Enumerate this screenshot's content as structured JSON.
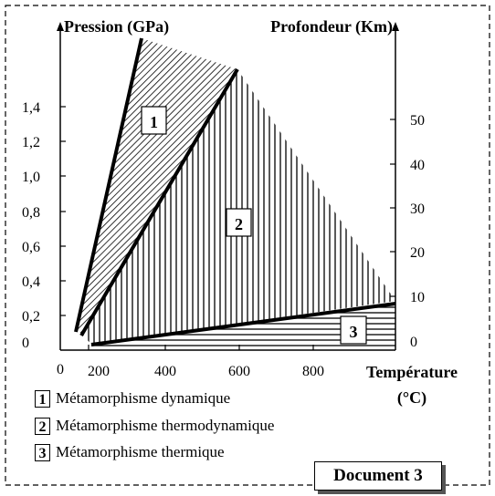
{
  "axes": {
    "left_title": "Pression (GPa)",
    "right_title": "Profondeur (Km)",
    "x_title": "Température",
    "x_unit": "(°C)",
    "left_ticks": [
      "1,4",
      "1,2",
      "1,0",
      "0,8",
      "0,6",
      "0,4",
      "0,2",
      "0"
    ],
    "right_ticks": [
      "50",
      "40",
      "30",
      "20",
      "10",
      "0"
    ],
    "x_ticks": [
      "0",
      "200",
      "400",
      "600",
      "800"
    ]
  },
  "zones": [
    {
      "id": "1",
      "label": "Métamorphisme dynamique",
      "pattern": "diagonal-hatch"
    },
    {
      "id": "2",
      "label": "Métamorphisme thermodynamique",
      "pattern": "vertical-stripes"
    },
    {
      "id": "3",
      "label": "Métamorphisme thermique",
      "pattern": "horizontal-stripes"
    }
  ],
  "document_label": "Document 3",
  "colors": {
    "ink": "#000000",
    "background": "#ffffff"
  }
}
